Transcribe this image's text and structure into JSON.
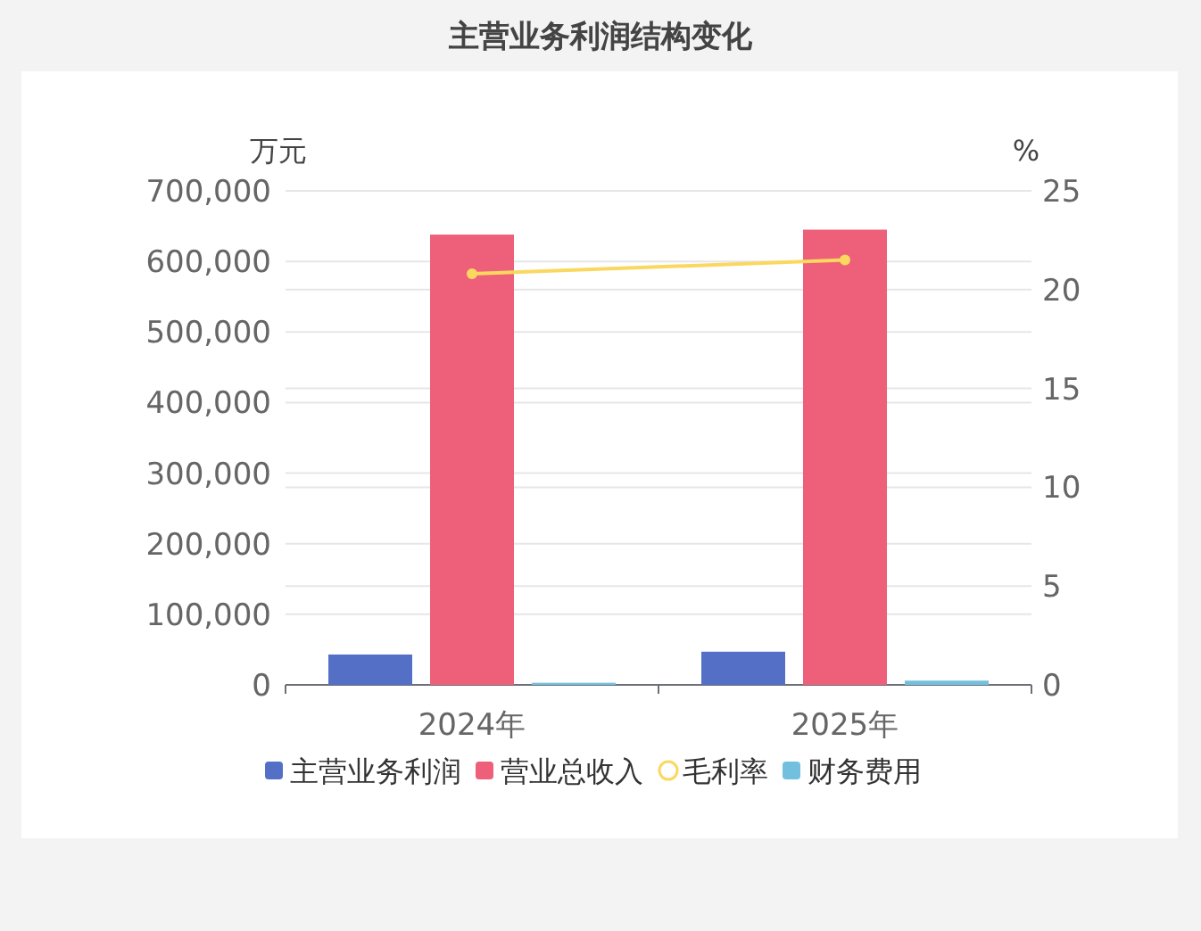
{
  "chart_data": {
    "type": "bar",
    "title": "主营业务利润结构变化",
    "ylabel": "万元",
    "y2label": "%",
    "categories": [
      "2024年",
      "2025年"
    ],
    "series": [
      {
        "name": "主营业务利润",
        "color": "#5470c6",
        "values": [
          43000,
          47000
        ]
      },
      {
        "name": "营业总收入",
        "color": "#ee6079",
        "values": [
          638000,
          645000
        ]
      },
      {
        "name": "毛利率",
        "color": "#fad860",
        "type": "line",
        "axis": "y2",
        "marker": "circle",
        "values": [
          20.8,
          21.5
        ]
      },
      {
        "name": "财务费用",
        "color": "#73c0de",
        "values": [
          3000,
          6000
        ]
      }
    ],
    "ylim": [
      0,
      700000
    ],
    "yticks": [
      {
        "value": 0,
        "label": "0"
      },
      {
        "value": 100000,
        "label": "100,000"
      },
      {
        "value": 200000,
        "label": "200,000"
      },
      {
        "value": 300000,
        "label": "300,000"
      },
      {
        "value": 400000,
        "label": "400,000"
      },
      {
        "value": 500000,
        "label": "500,000"
      },
      {
        "value": 600000,
        "label": "600,000"
      },
      {
        "value": 700000,
        "label": "700,000"
      }
    ],
    "y2lim": [
      0,
      25
    ],
    "y2ticks": [
      0,
      5,
      10,
      15,
      20,
      25
    ],
    "grid": true,
    "legend": "bottom"
  }
}
